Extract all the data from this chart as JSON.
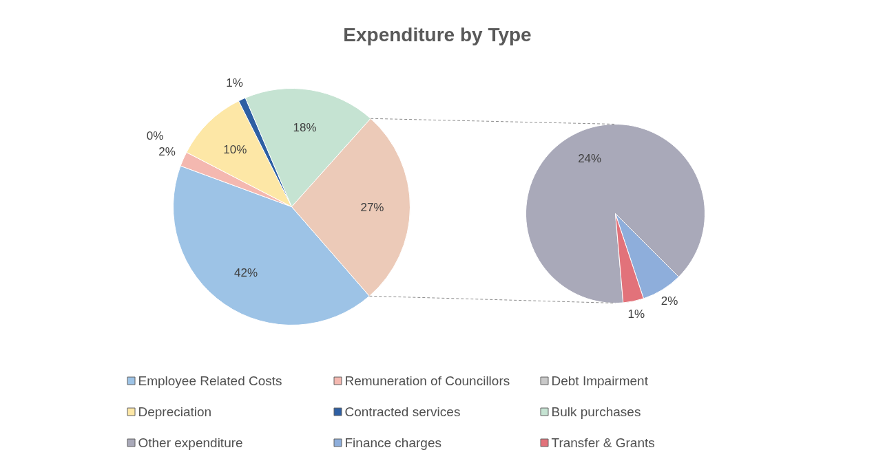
{
  "chart_data": [
    {
      "type": "pie",
      "title": "Expenditure by Type",
      "categories": [
        "Employee Related Costs",
        "Remuneration of Councillors",
        "Debt Impairment",
        "Depreciation",
        "Contracted services",
        "Bulk purchases",
        null
      ],
      "values": [
        42,
        2,
        0,
        10,
        1,
        18,
        27
      ],
      "colors": [
        "#9dc3e6",
        "#f4b8b0",
        "#c9c9c9",
        "#fde7a6",
        "#2e5fa3",
        "#c5e3d2",
        "#eccab8"
      ],
      "value_labels": [
        "42%",
        "2%",
        "0%",
        "10%",
        "1%",
        "18%",
        "27%"
      ],
      "legend": "bottom"
    },
    {
      "type": "pie",
      "categories": [
        "Other expenditure",
        "Finance charges",
        "Transfer & Grants"
      ],
      "values": [
        24,
        2,
        1
      ],
      "colors": [
        "#a9a9b9",
        "#8eaedb",
        "#e2727a"
      ],
      "value_labels": [
        "24%",
        "2%",
        "1%"
      ],
      "legend": "bottom"
    }
  ]
}
